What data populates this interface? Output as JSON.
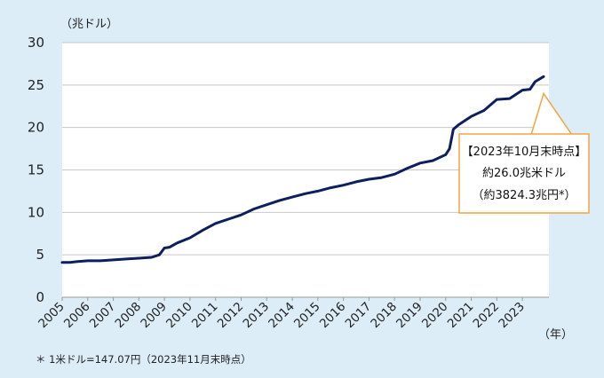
{
  "chart_data": {
    "type": "line",
    "y_unit_label": "（兆ドル）",
    "x_unit_label": "（年）",
    "ylim": [
      0,
      30
    ],
    "yticks": [
      0,
      5,
      10,
      15,
      20,
      25,
      30
    ],
    "xlim": [
      2005,
      2023.83
    ],
    "xtick_labels": [
      "2005",
      "2006",
      "2007",
      "2008",
      "2009",
      "2010",
      "2011",
      "2012",
      "2013",
      "2014",
      "2015",
      "2016",
      "2017",
      "2018",
      "2019",
      "2020",
      "2021",
      "2022",
      "2023"
    ],
    "grid": "horizontal",
    "series": [
      {
        "color": "#0d1f5c",
        "points": [
          [
            2005.0,
            4.1
          ],
          [
            2005.3,
            4.1
          ],
          [
            2005.6,
            4.2
          ],
          [
            2006.0,
            4.3
          ],
          [
            2006.5,
            4.3
          ],
          [
            2007.0,
            4.4
          ],
          [
            2007.5,
            4.5
          ],
          [
            2008.0,
            4.6
          ],
          [
            2008.5,
            4.7
          ],
          [
            2008.8,
            5.0
          ],
          [
            2009.0,
            5.8
          ],
          [
            2009.2,
            5.9
          ],
          [
            2009.5,
            6.4
          ],
          [
            2010.0,
            7.0
          ],
          [
            2010.5,
            7.9
          ],
          [
            2011.0,
            8.7
          ],
          [
            2011.5,
            9.2
          ],
          [
            2012.0,
            9.7
          ],
          [
            2012.5,
            10.4
          ],
          [
            2013.0,
            10.9
          ],
          [
            2013.5,
            11.4
          ],
          [
            2014.0,
            11.8
          ],
          [
            2014.5,
            12.2
          ],
          [
            2015.0,
            12.5
          ],
          [
            2015.5,
            12.9
          ],
          [
            2016.0,
            13.2
          ],
          [
            2016.5,
            13.6
          ],
          [
            2017.0,
            13.9
          ],
          [
            2017.5,
            14.1
          ],
          [
            2018.0,
            14.5
          ],
          [
            2018.5,
            15.2
          ],
          [
            2019.0,
            15.8
          ],
          [
            2019.5,
            16.1
          ],
          [
            2020.0,
            16.8
          ],
          [
            2020.15,
            17.5
          ],
          [
            2020.3,
            19.8
          ],
          [
            2020.5,
            20.3
          ],
          [
            2021.0,
            21.3
          ],
          [
            2021.5,
            22.0
          ],
          [
            2022.0,
            23.3
          ],
          [
            2022.5,
            23.4
          ],
          [
            2023.0,
            24.4
          ],
          [
            2023.3,
            24.5
          ],
          [
            2023.5,
            25.4
          ],
          [
            2023.83,
            26.0
          ]
        ]
      }
    ],
    "annotation": {
      "lines": [
        "【2023年10月末時点】",
        "約26.0兆米ドル",
        "（約3824.3兆円*）"
      ],
      "border_color": "#f4a342",
      "target": [
        2023.83,
        24.0
      ]
    }
  },
  "footnote": "＊ 1米ドル=147.07円（2023年11月末時点）"
}
